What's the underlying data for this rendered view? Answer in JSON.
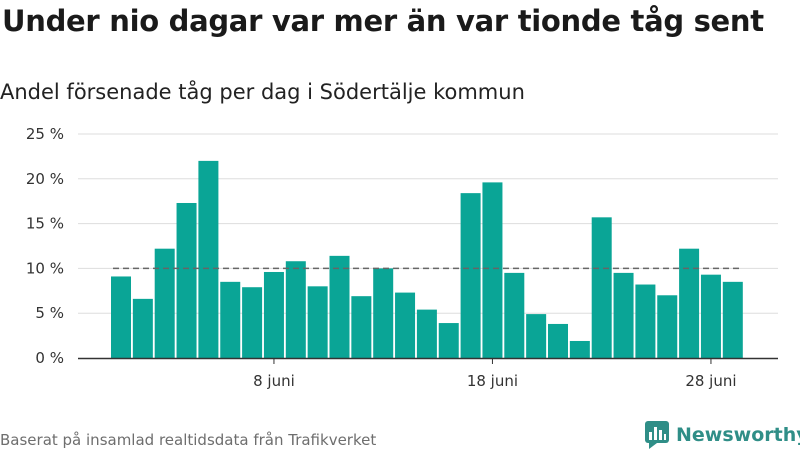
{
  "title": "Under nio dagar var mer än var tionde tåg sent",
  "subtitle": "Andel försenade tåg per dag i Södertälje kommun",
  "source": "Baserat på insamlad realtidsdata från Trafikverket",
  "brand": {
    "name": "Newsworthy",
    "color": "#2f8e87",
    "icon": "bar-chart-logo-icon"
  },
  "colors": {
    "bar": "#0aa596",
    "reference_line": "#666666",
    "grid": "#dddddd",
    "axis": "#333333"
  },
  "chart_data": {
    "type": "bar",
    "x": [
      "1 juni",
      "2 juni",
      "3 juni",
      "4 juni",
      "5 juni",
      "6 juni",
      "7 juni",
      "8 juni",
      "9 juni",
      "10 juni",
      "11 juni",
      "12 juni",
      "13 juni",
      "14 juni",
      "15 juni",
      "16 juni",
      "17 juni",
      "18 juni",
      "19 juni",
      "20 juni",
      "21 juni",
      "22 juni",
      "23 juni",
      "24 juni",
      "25 juni",
      "26 juni",
      "27 juni",
      "28 juni",
      "29 juni"
    ],
    "values": [
      9.1,
      6.6,
      12.2,
      17.3,
      22.0,
      8.5,
      7.9,
      9.6,
      10.8,
      8.0,
      11.4,
      6.9,
      10.0,
      7.3,
      5.4,
      3.9,
      18.4,
      19.6,
      9.5,
      4.9,
      3.8,
      1.9,
      15.7,
      9.5,
      8.2,
      7.0,
      12.2,
      9.3,
      8.5
    ],
    "x_ticks": [
      "8 juni",
      "18 juni",
      "28 juni"
    ],
    "y_ticks": [
      0,
      5,
      10,
      15,
      20,
      25
    ],
    "y_tick_labels": [
      "0 %",
      "5 %",
      "10 %",
      "15 %",
      "20 %",
      "25 %"
    ],
    "ylim": [
      0,
      25
    ],
    "reference_line": 10,
    "grid": true
  }
}
